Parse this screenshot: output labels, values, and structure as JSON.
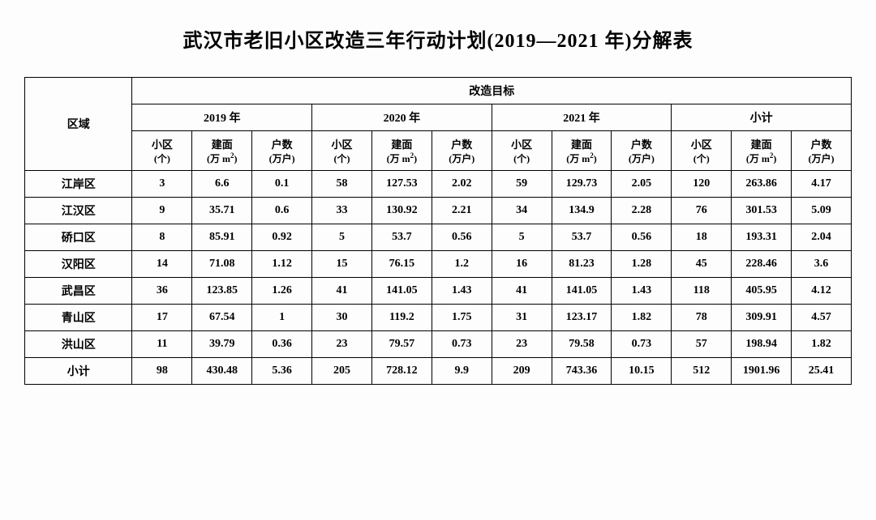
{
  "title": "武汉市老旧小区改造三年行动计划(2019—2021 年)分解表",
  "headers": {
    "region": "区域",
    "target": "改造目标",
    "years": [
      "2019 年",
      "2020 年",
      "2021 年",
      "小计"
    ],
    "cols": [
      {
        "label": "小区",
        "unit": "(个)"
      },
      {
        "label": "建面",
        "unit": "(万 m²)"
      },
      {
        "label": "户数",
        "unit": "(万户)"
      }
    ]
  },
  "rows": [
    {
      "region": "江岸区",
      "data": [
        "3",
        "6.6",
        "0.1",
        "58",
        "127.53",
        "2.02",
        "59",
        "129.73",
        "2.05",
        "120",
        "263.86",
        "4.17"
      ]
    },
    {
      "region": "江汉区",
      "data": [
        "9",
        "35.71",
        "0.6",
        "33",
        "130.92",
        "2.21",
        "34",
        "134.9",
        "2.28",
        "76",
        "301.53",
        "5.09"
      ]
    },
    {
      "region": "硚口区",
      "data": [
        "8",
        "85.91",
        "0.92",
        "5",
        "53.7",
        "0.56",
        "5",
        "53.7",
        "0.56",
        "18",
        "193.31",
        "2.04"
      ]
    },
    {
      "region": "汉阳区",
      "data": [
        "14",
        "71.08",
        "1.12",
        "15",
        "76.15",
        "1.2",
        "16",
        "81.23",
        "1.28",
        "45",
        "228.46",
        "3.6"
      ]
    },
    {
      "region": "武昌区",
      "data": [
        "36",
        "123.85",
        "1.26",
        "41",
        "141.05",
        "1.43",
        "41",
        "141.05",
        "1.43",
        "118",
        "405.95",
        "4.12"
      ]
    },
    {
      "region": "青山区",
      "data": [
        "17",
        "67.54",
        "1",
        "30",
        "119.2",
        "1.75",
        "31",
        "123.17",
        "1.82",
        "78",
        "309.91",
        "4.57"
      ]
    },
    {
      "region": "洪山区",
      "data": [
        "11",
        "39.79",
        "0.36",
        "23",
        "79.57",
        "0.73",
        "23",
        "79.58",
        "0.73",
        "57",
        "198.94",
        "1.82"
      ]
    },
    {
      "region": "小计",
      "data": [
        "98",
        "430.48",
        "5.36",
        "205",
        "728.12",
        "9.9",
        "209",
        "743.36",
        "10.15",
        "512",
        "1901.96",
        "25.41"
      ]
    }
  ],
  "style": {
    "border_color": "#000000",
    "background_color": "#fdfdfd",
    "text_color": "#000000",
    "title_fontsize": 24,
    "cell_fontsize": 14,
    "font_family": "SimSun"
  }
}
